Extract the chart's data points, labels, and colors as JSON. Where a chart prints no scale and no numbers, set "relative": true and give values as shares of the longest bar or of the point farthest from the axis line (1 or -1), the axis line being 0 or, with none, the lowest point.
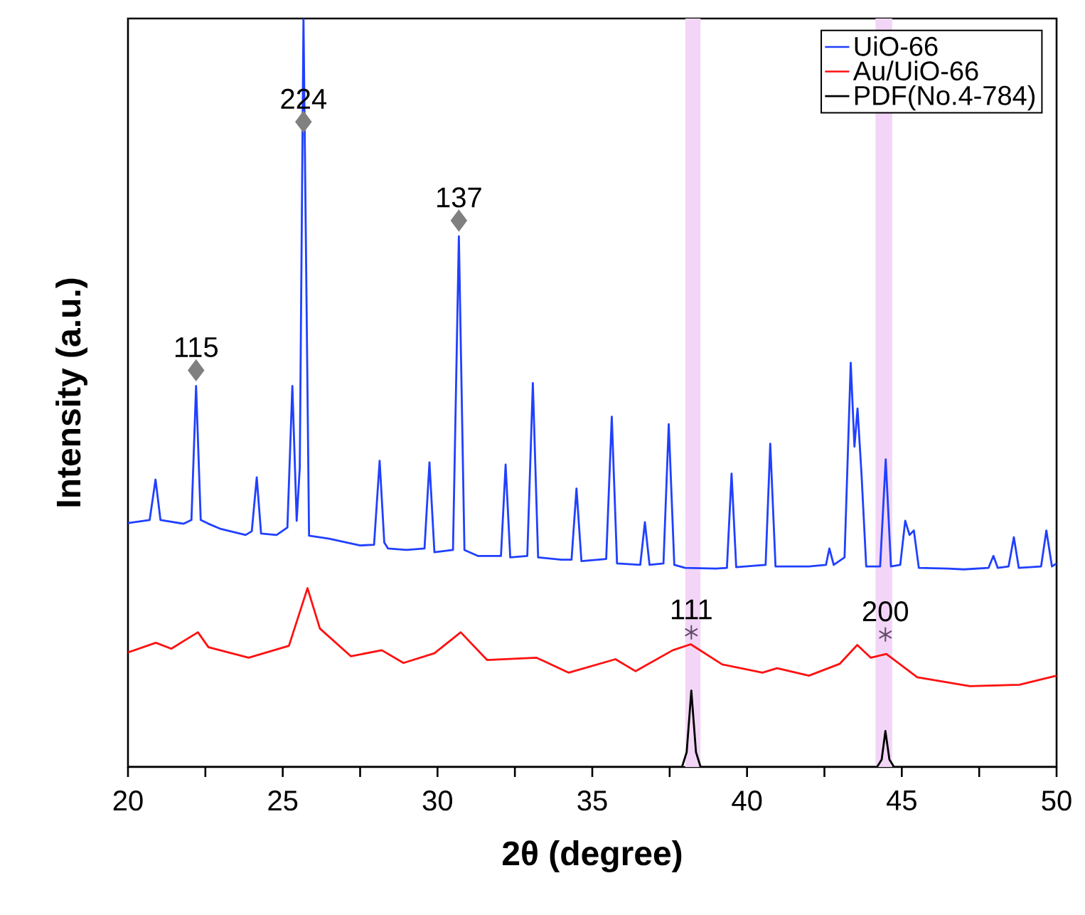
{
  "chart_data": {
    "type": "line",
    "relative": true,
    "xlabel": "2θ (degree)",
    "ylabel": "Intensity (a.u.)",
    "xlim": [
      20,
      50
    ],
    "xticks": [
      20,
      {
        "value": 22.5,
        "label": null
      },
      25,
      {
        "value": 27.5,
        "label": null
      },
      30,
      {
        "value": 32.5,
        "label": null
      },
      35,
      {
        "value": 37.5,
        "label": null
      },
      40,
      {
        "value": 42.5,
        "label": null
      },
      45,
      {
        "value": 47.5,
        "label": null
      },
      50
    ],
    "legend": "top right",
    "series": [
      {
        "name": "UiO-66",
        "color": "#2040ff",
        "x": [
          20,
          20.7,
          20.89,
          21.05,
          21.8,
          22.05,
          22.2,
          22.35,
          22.6,
          23.0,
          23.8,
          24.0,
          24.16,
          24.3,
          24.8,
          25.15,
          25.31,
          25.45,
          25.55,
          25.67,
          25.85,
          26.5,
          27.5,
          27.95,
          28.13,
          28.28,
          28.4,
          29.0,
          29.58,
          29.74,
          29.9,
          30.5,
          30.69,
          30.87,
          31.3,
          32.05,
          32.2,
          32.35,
          32.9,
          33.08,
          33.25,
          34.0,
          34.33,
          34.49,
          34.65,
          35.45,
          35.63,
          35.8,
          36.55,
          36.7,
          36.85,
          37.3,
          37.47,
          37.65,
          38.0,
          39.0,
          39.35,
          39.5,
          39.65,
          40.6,
          40.75,
          40.92,
          42.0,
          42.55,
          42.66,
          42.8,
          43.15,
          43.35,
          43.47,
          43.57,
          43.7,
          43.85,
          44.3,
          44.48,
          44.65,
          44.95,
          45.11,
          45.25,
          45.39,
          45.55,
          46.5,
          47.0,
          47.8,
          47.96,
          48.1,
          48.45,
          48.62,
          48.78,
          49.5,
          49.67,
          49.85,
          50
        ],
        "values": [
          0.326,
          0.33,
          0.384,
          0.33,
          0.325,
          0.33,
          0.509,
          0.33,
          0.325,
          0.318,
          0.31,
          0.315,
          0.387,
          0.312,
          0.31,
          0.32,
          0.509,
          0.329,
          0.4,
          1.0,
          0.309,
          0.305,
          0.296,
          0.297,
          0.409,
          0.3,
          0.292,
          0.29,
          0.292,
          0.407,
          0.287,
          0.29,
          0.709,
          0.29,
          0.282,
          0.282,
          0.404,
          0.28,
          0.282,
          0.513,
          0.28,
          0.277,
          0.277,
          0.372,
          0.275,
          0.278,
          0.468,
          0.272,
          0.27,
          0.327,
          0.27,
          0.272,
          0.458,
          0.27,
          0.266,
          0.265,
          0.266,
          0.392,
          0.267,
          0.27,
          0.432,
          0.268,
          0.268,
          0.27,
          0.292,
          0.27,
          0.28,
          0.54,
          0.428,
          0.479,
          0.39,
          0.268,
          0.268,
          0.411,
          0.268,
          0.27,
          0.329,
          0.31,
          0.316,
          0.266,
          0.265,
          0.264,
          0.266,
          0.282,
          0.266,
          0.268,
          0.307,
          0.266,
          0.268,
          0.316,
          0.268,
          0.272
        ]
      },
      {
        "name": "Au/UiO-66",
        "color": "#ff1010",
        "x": [
          20,
          20.9,
          21.4,
          22.26,
          22.6,
          23.9,
          25.2,
          25.8,
          26.2,
          27.2,
          28.2,
          28.9,
          29.9,
          30.75,
          31.6,
          33.2,
          34.24,
          35.75,
          36.4,
          37.6,
          38.18,
          39.2,
          40.5,
          40.97,
          42.0,
          43.0,
          43.56,
          44.0,
          44.5,
          45.5,
          47.2,
          48.8,
          50
        ],
        "values": [
          0.153,
          0.166,
          0.158,
          0.18,
          0.16,
          0.146,
          0.162,
          0.239,
          0.185,
          0.148,
          0.156,
          0.139,
          0.152,
          0.18,
          0.143,
          0.146,
          0.126,
          0.144,
          0.128,
          0.156,
          0.164,
          0.137,
          0.126,
          0.132,
          0.122,
          0.138,
          0.163,
          0.146,
          0.151,
          0.12,
          0.108,
          0.11,
          0.122
        ]
      },
      {
        "name": "PDF(No.4-784)",
        "color": "#000000",
        "x": [
          20,
          37.9,
          38.05,
          38.2,
          38.35,
          38.5,
          44.2,
          44.35,
          44.47,
          44.6,
          44.75,
          50
        ],
        "values": [
          0,
          0,
          0.02,
          0.102,
          0.02,
          0,
          0,
          0.01,
          0.048,
          0.01,
          0,
          0
        ]
      },
      {
        "type": "scatter",
        "marker": "diamond",
        "color": "#808080",
        "x": [
          22.2,
          25.67,
          30.69
        ],
        "values": [
          0.53,
          0.862,
          0.73
        ]
      },
      {
        "type": "scatter",
        "marker": "cross",
        "color": "#604a66",
        "x": [
          38.2,
          44.47
        ],
        "values": [
          0.18,
          0.177
        ]
      }
    ],
    "bands": [
      {
        "axis": "x",
        "from": 38.0,
        "to": 38.5,
        "color": "#f3d6f7"
      },
      {
        "axis": "x",
        "from": 44.15,
        "to": 44.69,
        "color": "#f3d6f7"
      }
    ],
    "annotations": [
      {
        "text": "115",
        "x": 22.2,
        "y": 0.53
      },
      {
        "text": "224",
        "x": 25.67,
        "y": 0.862
      },
      {
        "text": "137",
        "x": 30.69,
        "y": 0.73
      },
      {
        "text": "111",
        "x": 38.2,
        "y": 0.18
      },
      {
        "text": "200",
        "x": 44.47,
        "y": 0.177
      }
    ]
  }
}
